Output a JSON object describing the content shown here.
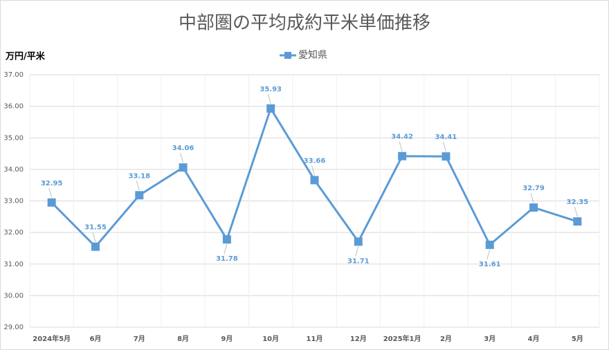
{
  "chart_data": {
    "type": "line",
    "title": "中部圏の平均成約平米単価推移",
    "y_label": "万円/平米",
    "categories": [
      "2024年5月",
      "6月",
      "7月",
      "8月",
      "9月",
      "10月",
      "11月",
      "12月",
      "2025年1月",
      "2月",
      "3月",
      "4月",
      "5月"
    ],
    "series": [
      {
        "name": "愛知県",
        "color": "#5b9bd5",
        "values": [
          32.95,
          31.55,
          33.18,
          34.06,
          31.78,
          35.93,
          33.66,
          31.71,
          34.42,
          34.41,
          31.61,
          32.79,
          32.35
        ]
      }
    ],
    "ylim": [
      29,
      37
    ],
    "yticks": [
      {
        "value": 29,
        "label": "29.00"
      },
      {
        "value": 30,
        "label": "30.00"
      },
      {
        "value": 31,
        "label": "31.00"
      },
      {
        "value": 32,
        "label": "32.00"
      },
      {
        "value": 33,
        "label": "33.00"
      },
      {
        "value": 34,
        "label": "34.00"
      },
      {
        "value": 35,
        "label": "35.00"
      },
      {
        "value": 36,
        "label": "36.00"
      },
      {
        "value": 37,
        "label": "37.00"
      }
    ],
    "grid": true,
    "legend": "top"
  }
}
